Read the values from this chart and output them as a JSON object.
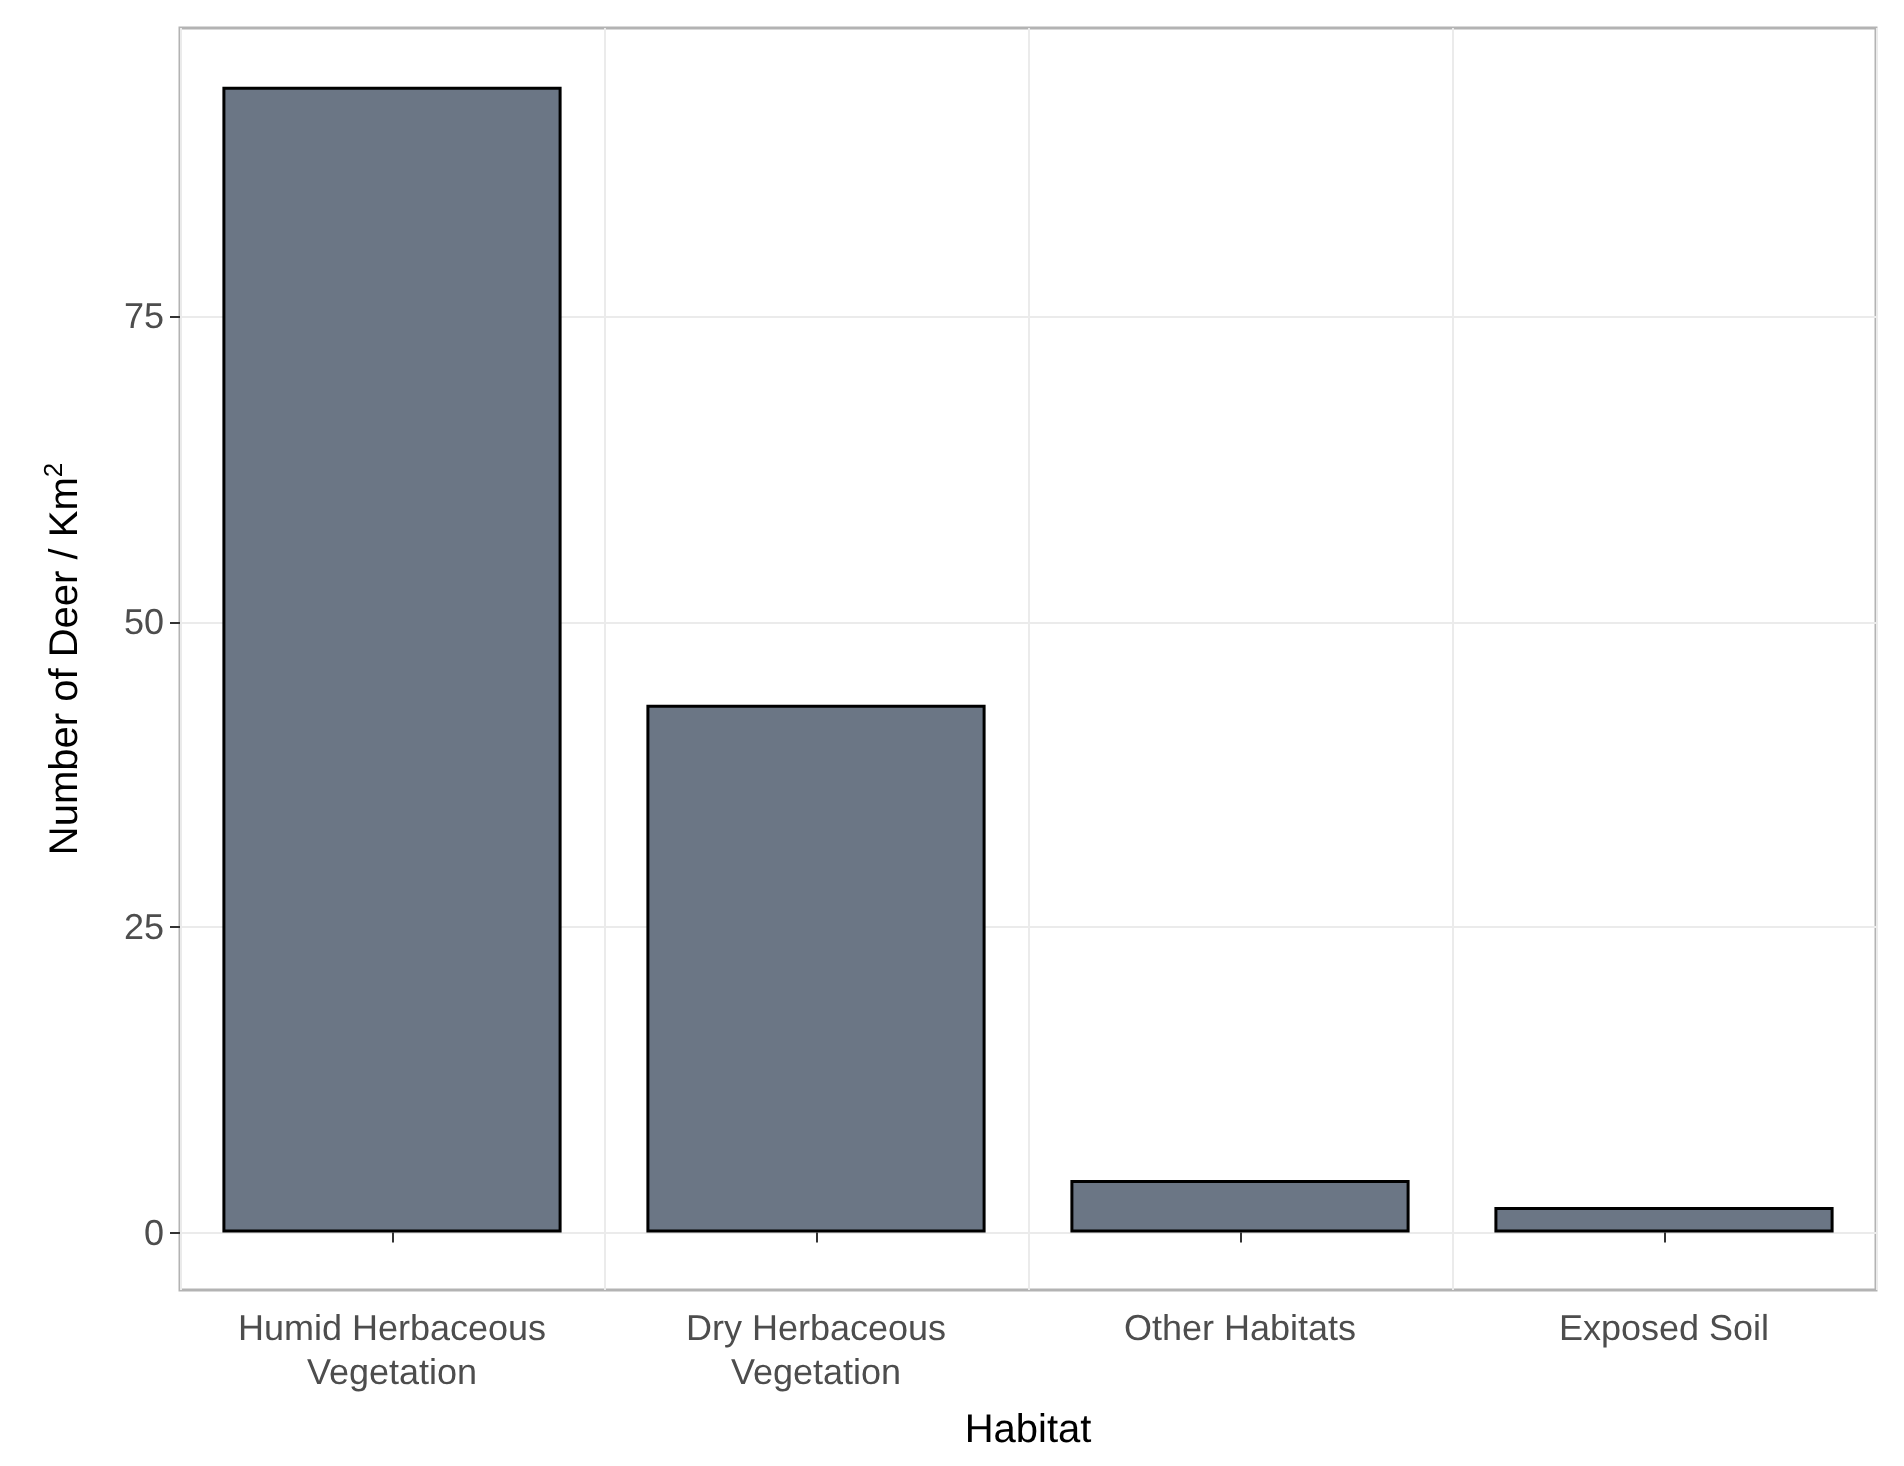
{
  "chart_data": {
    "type": "bar",
    "xlabel": "Habitat",
    "ylabel": "Number of Deer / Km$^{2}$",
    "categories": [
      "Humid Herbaceous\nVegetation",
      "Dry Herbaceous\nVegetation",
      "Other Habitats",
      "Exposed Soil"
    ],
    "values": [
      93.8,
      43.2,
      4.3,
      2.1
    ],
    "color": "#6b7685",
    "ylim": [
      -4.7,
      98.6
    ],
    "yticks": [
      0,
      25,
      50,
      75
    ],
    "grid": true
  }
}
